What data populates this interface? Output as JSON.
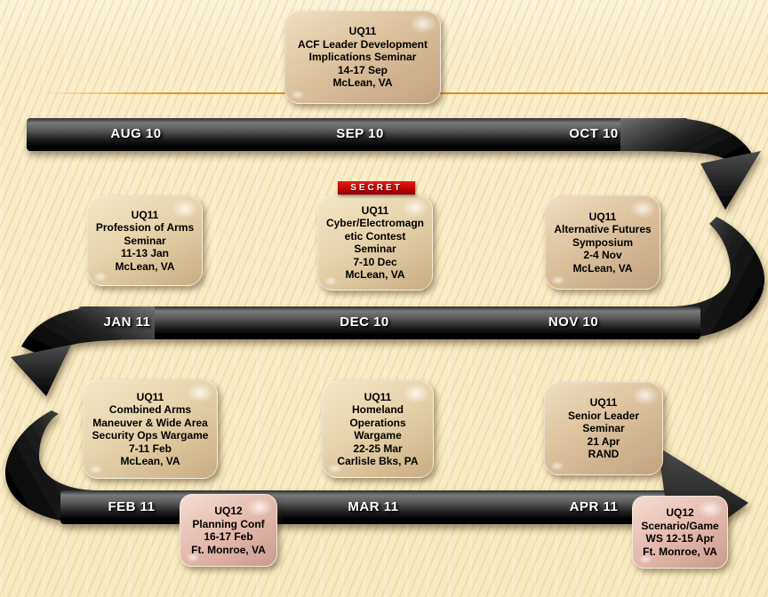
{
  "slide": {
    "background_color": "#FAEFC9",
    "accent_line_color": "#DC8F12",
    "timeline_bar_color": "#1a1a1a"
  },
  "timeline": {
    "months": [
      {
        "label": "AUG 10"
      },
      {
        "label": "SEP 10"
      },
      {
        "label": "OCT 10"
      },
      {
        "label": "JAN 11"
      },
      {
        "label": "DEC 10"
      },
      {
        "label": "NOV 10"
      },
      {
        "label": "FEB 11"
      },
      {
        "label": "MAR 11"
      },
      {
        "label": "APR 11"
      }
    ]
  },
  "banner": {
    "label": "SECRET",
    "color": "#C40404"
  },
  "events": [
    {
      "name": "acf-leader-development-implications-seminar",
      "lines": [
        "UQ11",
        "ACF Leader Development",
        "Implications Seminar",
        "14-17 Sep",
        "McLean, VA"
      ]
    },
    {
      "name": "profession-of-arms-seminar",
      "lines": [
        "UQ11",
        "Profession of Arms",
        "Seminar",
        "11-13 Jan",
        "McLean, VA"
      ]
    },
    {
      "name": "cyber-electromagnetic-contest-seminar",
      "lines": [
        "UQ11",
        "Cyber/Electromagn",
        "etic Contest",
        "Seminar",
        "7-10 Dec",
        "McLean, VA"
      ]
    },
    {
      "name": "alternative-futures-symposium",
      "lines": [
        "UQ11",
        "Alternative Futures",
        "Symposium",
        "2-4 Nov",
        "McLean, VA"
      ]
    },
    {
      "name": "combined-arms-maneuver-wide-area-security-ops-wargame",
      "lines": [
        "UQ11",
        "Combined Arms",
        "Maneuver & Wide Area",
        "Security Ops Wargame",
        "7-11 Feb",
        "McLean, VA"
      ]
    },
    {
      "name": "homeland-operations-wargame",
      "lines": [
        "UQ11",
        "Homeland",
        "Operations",
        "Wargame",
        "22-25 Mar",
        "Carlisle Bks, PA"
      ]
    },
    {
      "name": "senior-leader-seminar",
      "lines": [
        "UQ11",
        "Senior Leader",
        "Seminar",
        "21 Apr",
        "RAND"
      ]
    },
    {
      "name": "uq12-planning-conf",
      "lines": [
        "UQ12",
        "Planning Conf",
        "16-17 Feb",
        "Ft. Monroe, VA"
      ]
    },
    {
      "name": "uq12-scenario-game-workshop",
      "lines": [
        "UQ12",
        "Scenario/Game",
        "WS 12-15 Apr",
        "Ft. Monroe, VA"
      ]
    }
  ]
}
